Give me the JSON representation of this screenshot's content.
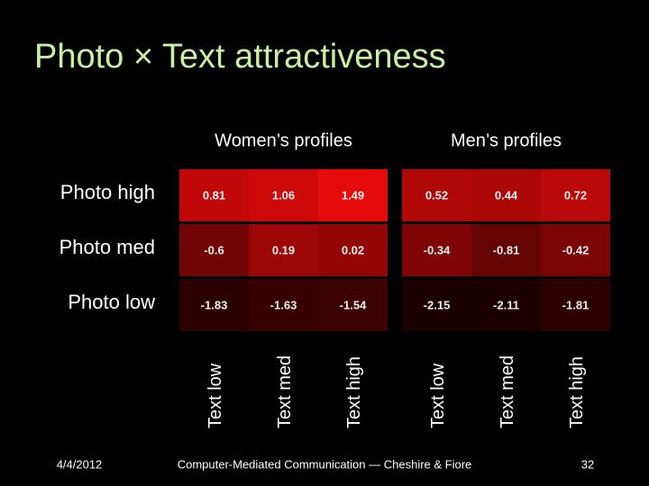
{
  "slide": {
    "date": "4/4/2012",
    "footer": "Computer-Mediated Communication — Cheshire & Fiore",
    "page": "32"
  },
  "chart_data": {
    "type": "heatmap",
    "title": "Photo × Text attractiveness",
    "rows": [
      "Photo high",
      "Photo med",
      "Photo low"
    ],
    "colors": [
      "#1a0000",
      "#e60a0a"
    ],
    "panels": [
      {
        "title": "Women’s profiles",
        "columns": [
          "Text low",
          "Text med",
          "Text high"
        ],
        "values": [
          [
            0.81,
            1.06,
            1.49
          ],
          [
            -0.6,
            0.19,
            0.02
          ],
          [
            -1.83,
            -1.63,
            -1.54
          ]
        ]
      },
      {
        "title": "Men’s profiles",
        "columns": [
          "Text low",
          "Text med",
          "Text high"
        ],
        "values": [
          [
            0.52,
            0.44,
            0.72
          ],
          [
            -0.34,
            -0.81,
            -0.42
          ],
          [
            -2.15,
            -2.11,
            -1.81
          ]
        ]
      }
    ]
  }
}
